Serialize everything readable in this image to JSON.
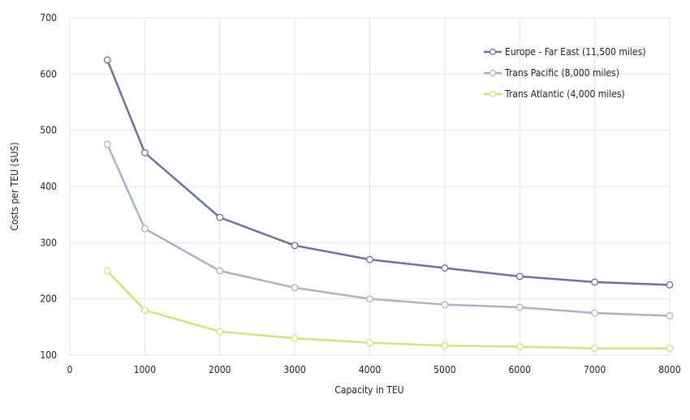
{
  "chart_data": {
    "type": "line",
    "title": "",
    "xlabel": "Capacity in TEU",
    "ylabel": "Costs per TEU ($US)",
    "xlim": [
      0,
      8000
    ],
    "ylim": [
      100,
      700
    ],
    "xticks": [
      0,
      1000,
      2000,
      3000,
      4000,
      5000,
      6000,
      7000,
      8000
    ],
    "yticks": [
      100,
      200,
      300,
      400,
      500,
      600,
      700
    ],
    "grid": true,
    "legend_position": "top-right",
    "x": [
      500,
      1000,
      2000,
      3000,
      4000,
      5000,
      6000,
      7000,
      8000
    ],
    "series": [
      {
        "name": "Europe - Far East (11,500 miles)",
        "color": "#6b7396",
        "values": [
          625,
          460,
          345,
          295,
          270,
          255,
          240,
          230,
          225
        ]
      },
      {
        "name": "Trans Pacific (8,000 miles)",
        "color": "#a7b4c6",
        "values": [
          475,
          325,
          250,
          220,
          200,
          190,
          185,
          175,
          170
        ]
      },
      {
        "name": "Trans Atlantic (4,000 miles)",
        "color": "#d6df84",
        "values": [
          250,
          180,
          142,
          130,
          122,
          117,
          115,
          112,
          112
        ]
      }
    ]
  }
}
